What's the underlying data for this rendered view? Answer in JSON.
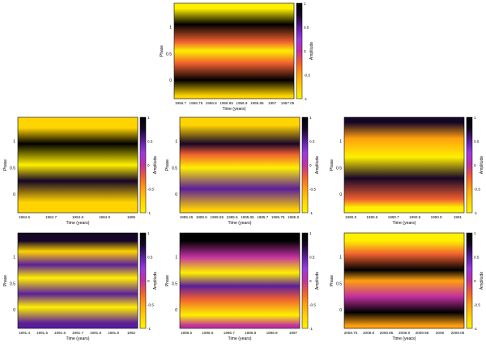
{
  "chart_data": [
    {
      "type": "heatmap",
      "xlabel": "Time (years)",
      "ylabel": "Phase",
      "colorbar_label": "Amplitude",
      "xticks": [
        "1956.7",
        "1956.75",
        "1956.8",
        "1956.85",
        "1956.9",
        "1956.95",
        "1957",
        "1957.05"
      ],
      "yticks": [
        "1",
        "0.5",
        "0"
      ],
      "colorbar_ticks": [
        "1",
        "0.5",
        "0",
        "-0.5",
        "-1"
      ],
      "bands": [
        {
          "phase": 1.35,
          "amplitude": 0.9
        },
        {
          "phase": 1.05,
          "amplitude": -0.9
        },
        {
          "phase": 0.72,
          "amplitude": 0.2
        },
        {
          "phase": 0.55,
          "amplitude": 1.0
        },
        {
          "phase": 0.32,
          "amplitude": 0.2
        },
        {
          "phase": 0.0,
          "amplitude": -1.0
        },
        {
          "phase": -0.3,
          "amplitude": 0.7
        }
      ]
    },
    {
      "type": "heatmap",
      "xlabel": "Time (years)",
      "ylabel": "Phase",
      "colorbar_label": "Amplitude",
      "xticks": [
        "1984.6",
        "1984.7",
        "1984.8",
        "1984.9",
        "1985"
      ],
      "yticks": [
        "1",
        "0.5",
        "0"
      ],
      "colorbar_ticks": [
        "1",
        "0.5",
        "0",
        "-0.5",
        "-1"
      ],
      "bands": [
        {
          "phase": 1.25,
          "amplitude": 0.7
        },
        {
          "phase": 0.95,
          "amplitude": -0.9
        },
        {
          "phase": 0.55,
          "amplitude": 1.0
        },
        {
          "phase": 0.25,
          "amplitude": -0.8
        },
        {
          "phase": -0.15,
          "amplitude": 0.8
        }
      ]
    },
    {
      "type": "heatmap",
      "xlabel": "Time (years)",
      "ylabel": "Phase",
      "colorbar_label": "Amplitude",
      "xticks": [
        "1985.45",
        "1985.5",
        "1985.55",
        "1985.6",
        "1985.65",
        "1985.7",
        "1985.75",
        "1985.8"
      ],
      "yticks": [
        "1",
        "0.5",
        "0"
      ],
      "colorbar_ticks": [
        "1",
        "0.5",
        "0",
        "-0.5",
        "-1"
      ],
      "bands": [
        {
          "phase": 1.3,
          "amplitude": 0.8
        },
        {
          "phase": 0.95,
          "amplitude": -0.8
        },
        {
          "phase": 0.75,
          "amplitude": 0.3
        },
        {
          "phase": 0.5,
          "amplitude": 1.0
        },
        {
          "phase": 0.1,
          "amplitude": -0.6
        },
        {
          "phase": -0.3,
          "amplitude": 0.7
        }
      ]
    },
    {
      "type": "heatmap",
      "xlabel": "Time (years)",
      "ylabel": "Phase",
      "colorbar_label": "Amplitude",
      "xticks": [
        "1990.5",
        "1990.6",
        "1990.7",
        "1990.8",
        "1990.9",
        "1991"
      ],
      "yticks": [
        "1",
        "0.5",
        "0"
      ],
      "colorbar_ticks": [
        "1",
        "0.5",
        "0",
        "-0.5",
        "-1"
      ],
      "bands": [
        {
          "phase": 1.35,
          "amplitude": -0.7
        },
        {
          "phase": 1.05,
          "amplitude": 0.6
        },
        {
          "phase": 0.7,
          "amplitude": 1.0
        },
        {
          "phase": 0.3,
          "amplitude": -0.8
        },
        {
          "phase": -0.1,
          "amplitude": 0.3
        },
        {
          "phase": -0.25,
          "amplitude": 1.0
        }
      ]
    },
    {
      "type": "heatmap",
      "xlabel": "Time (years)",
      "ylabel": "Phase",
      "colorbar_label": "Amplitude",
      "xticks": [
        "1991.4",
        "1991.5",
        "1991.6",
        "1991.7",
        "1991.8",
        "1991.9",
        "1992"
      ],
      "yticks": [
        "1",
        "0.5",
        "0"
      ],
      "colorbar_ticks": [
        "1",
        "0.5",
        "0",
        "-0.5",
        "-1"
      ],
      "bands": [
        {
          "phase": 1.3,
          "amplitude": -0.7
        },
        {
          "phase": 1.1,
          "amplitude": 0.8
        },
        {
          "phase": 0.85,
          "amplitude": -0.6
        },
        {
          "phase": 0.6,
          "amplitude": 0.9
        },
        {
          "phase": 0.3,
          "amplitude": -0.6
        },
        {
          "phase": 0.05,
          "amplitude": 0.9
        },
        {
          "phase": -0.25,
          "amplitude": -0.6
        }
      ]
    },
    {
      "type": "heatmap",
      "xlabel": "Time (years)",
      "ylabel": "Phase",
      "colorbar_label": "Amplitude",
      "xticks": [
        "1996.5",
        "1996.6",
        "1996.7",
        "1996.8",
        "1996.9",
        "1997"
      ],
      "yticks": [
        "1",
        "0.5",
        "0"
      ],
      "colorbar_ticks": [
        "1",
        "0.5",
        "0",
        "-0.5",
        "-1"
      ],
      "bands": [
        {
          "phase": 1.3,
          "amplitude": -0.9
        },
        {
          "phase": 1.0,
          "amplitude": 0.1
        },
        {
          "phase": 0.7,
          "amplitude": 0.9
        },
        {
          "phase": 0.45,
          "amplitude": -0.6
        },
        {
          "phase": 0.2,
          "amplitude": 0.3
        },
        {
          "phase": -0.1,
          "amplitude": 1.0
        },
        {
          "phase": -0.3,
          "amplitude": 0.0
        }
      ]
    },
    {
      "type": "heatmap",
      "xlabel": "Time (years)",
      "ylabel": "Phase",
      "colorbar_label": "Amplitude",
      "xticks": [
        "2008.75",
        "2008.8",
        "2008.85",
        "2008.9",
        "2008.95",
        "2009",
        "2009.05"
      ],
      "yticks": [
        "1",
        "0.5",
        "0"
      ],
      "colorbar_ticks": [
        "1",
        "0.5",
        "0",
        "-0.5",
        "-1"
      ],
      "bands": [
        {
          "phase": 1.3,
          "amplitude": 0.9
        },
        {
          "phase": 1.05,
          "amplitude": 0.2
        },
        {
          "phase": 0.75,
          "amplitude": -0.9
        },
        {
          "phase": 0.55,
          "amplitude": 0.6
        },
        {
          "phase": 0.25,
          "amplitude": 0.1
        },
        {
          "phase": -0.05,
          "amplitude": -1.0
        },
        {
          "phase": -0.3,
          "amplitude": 0.5
        }
      ]
    }
  ]
}
